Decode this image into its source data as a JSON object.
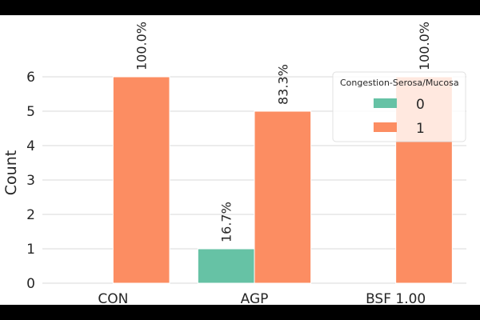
{
  "chart_data": {
    "type": "bar",
    "categories": [
      "CON",
      "AGP",
      "BSF 1.00"
    ],
    "ylabel": "Count",
    "xlabel": "",
    "ylim": [
      0,
      6.3
    ],
    "yticks": [
      0,
      1,
      2,
      3,
      4,
      5,
      6
    ],
    "grid": true,
    "legend": {
      "title": "Congestion-Serosa/Mucosa",
      "placement": "top-right"
    },
    "series": [
      {
        "name": "0",
        "color": "#66c2a5",
        "values": [
          0,
          1,
          0
        ],
        "labels": [
          "",
          "16.7%",
          ""
        ]
      },
      {
        "name": "1",
        "color": "#fc8d62",
        "values": [
          6,
          5,
          6
        ],
        "labels": [
          "100.0%",
          "83.3%",
          "100.0%"
        ]
      }
    ]
  }
}
